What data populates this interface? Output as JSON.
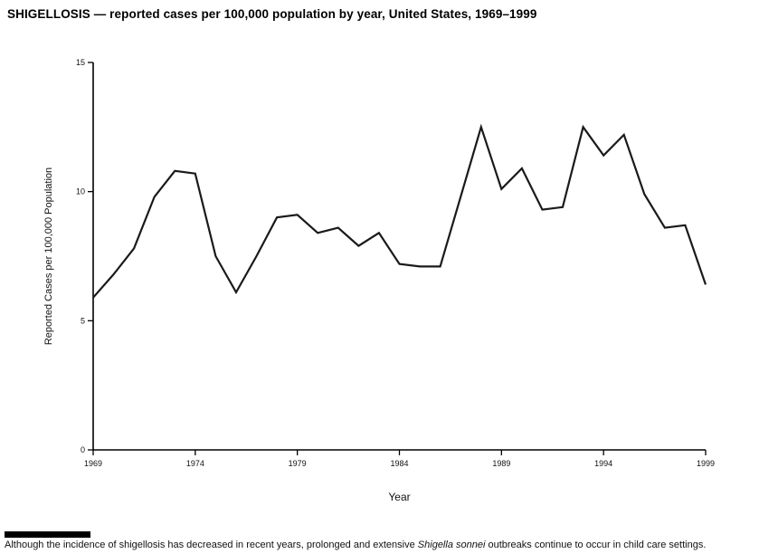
{
  "chart_data": {
    "type": "line",
    "title": "SHIGELLOSIS — reported cases per 100,000 population by year, United States, 1969–1999",
    "xlabel": "Year",
    "ylabel": "Reported Cases per 100,000 Population",
    "xlim": [
      1969,
      1999
    ],
    "ylim": [
      0,
      15
    ],
    "xticks": [
      1969,
      1974,
      1979,
      1984,
      1989,
      1994,
      1999
    ],
    "yticks": [
      0,
      5,
      10,
      15
    ],
    "grid": false,
    "legend": "none",
    "line_color": "#1a1a1a",
    "x": [
      1969,
      1970,
      1971,
      1972,
      1973,
      1974,
      1975,
      1976,
      1977,
      1978,
      1979,
      1980,
      1981,
      1982,
      1983,
      1984,
      1985,
      1986,
      1987,
      1988,
      1989,
      1990,
      1991,
      1992,
      1993,
      1994,
      1995,
      1996,
      1997,
      1998,
      1999
    ],
    "values": [
      5.9,
      6.8,
      7.8,
      9.8,
      10.8,
      10.7,
      7.5,
      6.1,
      7.5,
      9.0,
      9.1,
      8.4,
      8.6,
      7.9,
      8.4,
      7.2,
      7.1,
      7.1,
      9.8,
      12.5,
      10.1,
      10.9,
      9.3,
      9.4,
      12.5,
      11.4,
      12.2,
      9.9,
      8.6,
      8.7,
      6.4
    ]
  },
  "footnote": {
    "part1": "Although the incidence of shigellosis has decreased in recent years, prolonged and extensive ",
    "italic": "Shigella sonnei",
    "part2": " outbreaks continue to occur in child care settings."
  }
}
